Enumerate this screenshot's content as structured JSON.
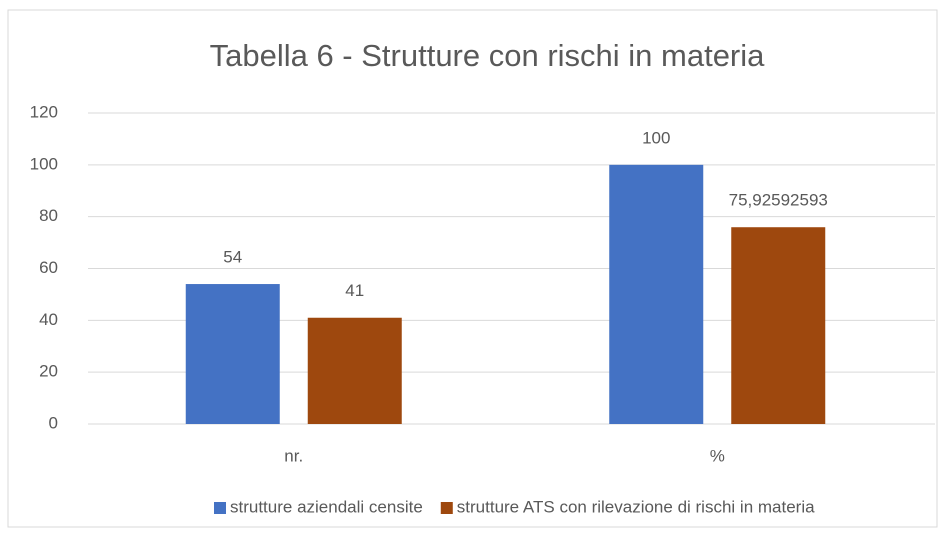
{
  "chart_data": {
    "type": "bar",
    "title": "Tabella 6 - Strutture con rischi in materia",
    "categories": [
      "nr.",
      "%"
    ],
    "series": [
      {
        "name": "strutture aziendali censite",
        "color": "#4472c4",
        "values": [
          54,
          100
        ]
      },
      {
        "name": "strutture ATS con rilevazione di rischi in materia",
        "color": "#9e480e",
        "values": [
          41,
          75.92592593
        ],
        "value_labels": [
          "41",
          "75,92592593"
        ]
      }
    ],
    "ylim": [
      0,
      120
    ],
    "yticks": [
      0,
      20,
      40,
      60,
      80,
      100,
      120
    ],
    "grid": true,
    "legend": "bottom"
  }
}
